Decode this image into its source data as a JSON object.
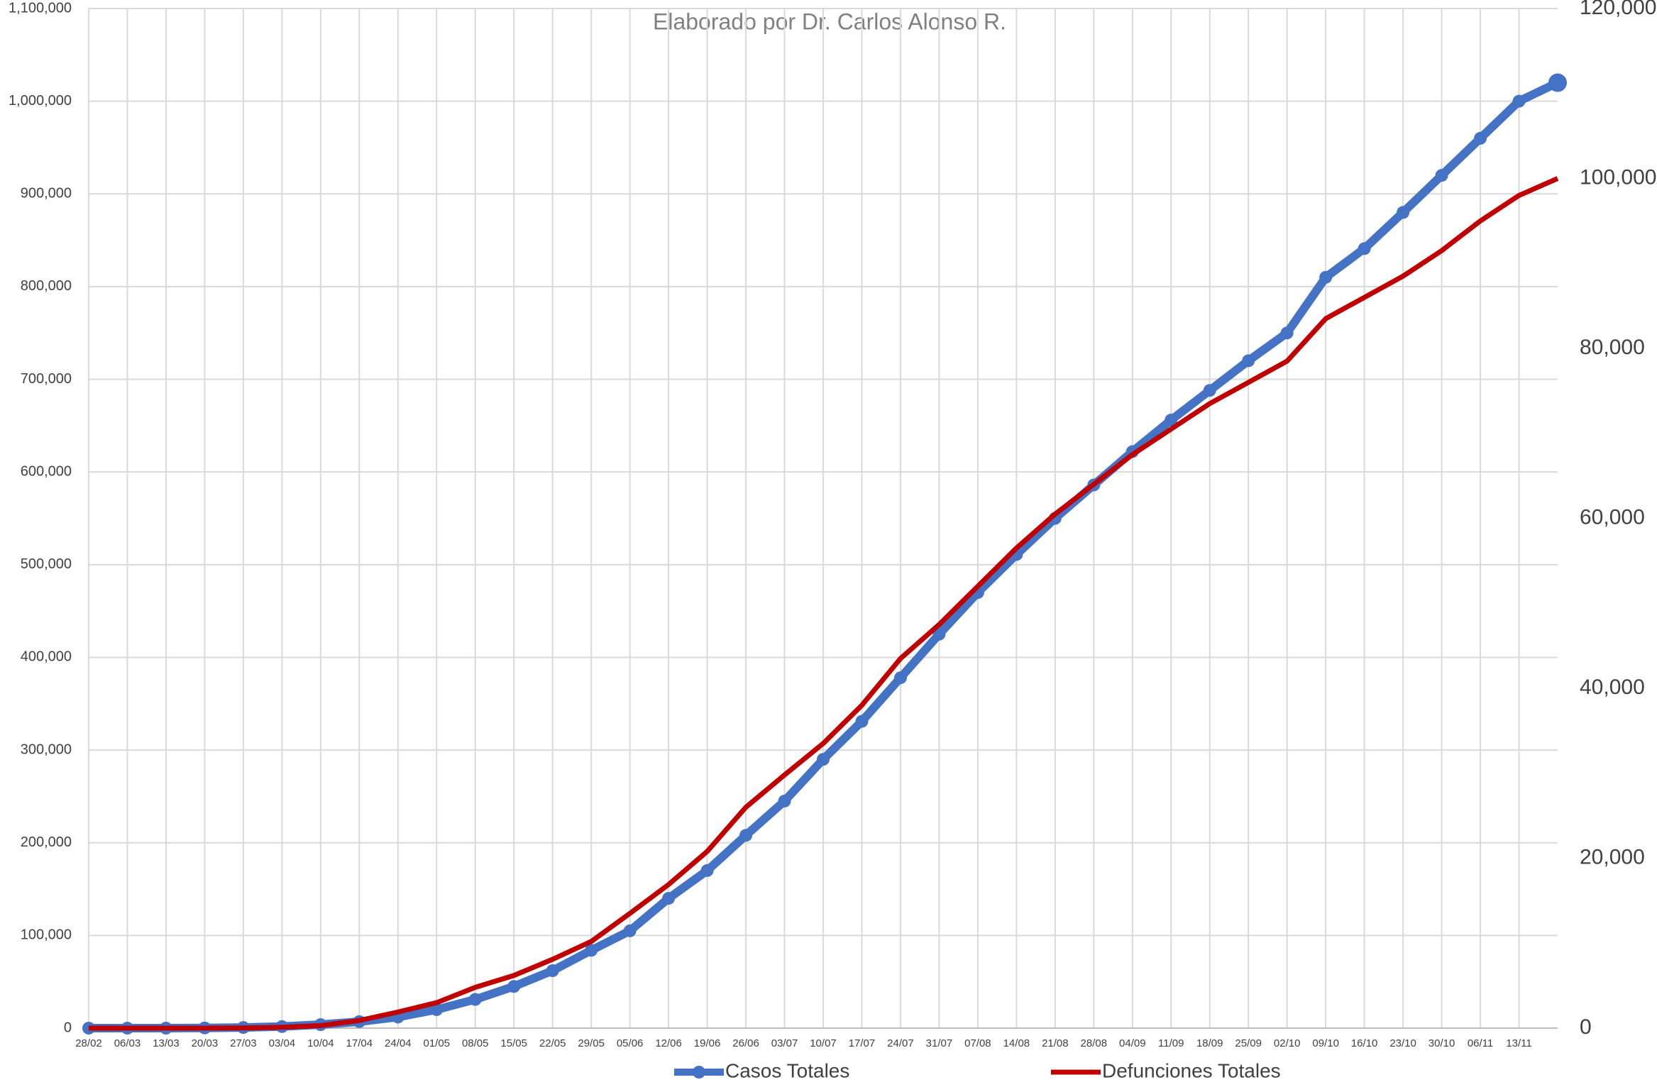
{
  "chart_data": {
    "type": "line",
    "subtitle": "Elaborado por Dr. Carlos Alonso R.",
    "categories": [
      "28/02",
      "06/03",
      "13/03",
      "20/03",
      "27/03",
      "03/04",
      "10/04",
      "17/04",
      "24/04",
      "01/05",
      "08/05",
      "15/05",
      "22/05",
      "29/05",
      "05/06",
      "12/06",
      "19/06",
      "26/06",
      "03/07",
      "10/07",
      "17/07",
      "24/07",
      "31/07",
      "07/08",
      "14/08",
      "21/08",
      "28/08",
      "04/09",
      "11/09",
      "18/09",
      "25/09",
      "02/10",
      "09/10",
      "16/10",
      "23/10",
      "30/10",
      "06/11",
      "13/11",
      null
    ],
    "series": [
      {
        "name": "Casos Totales",
        "color": "#4472c4",
        "axis": "y",
        "values": [
          0,
          0,
          0,
          200,
          700,
          1700,
          3800,
          7000,
          12000,
          20000,
          31000,
          45000,
          62000,
          84000,
          105000,
          140000,
          170000,
          208000,
          245000,
          290000,
          331000,
          378000,
          425000,
          470000,
          511000,
          550000,
          586000,
          622000,
          656000,
          688000,
          720000,
          750000,
          810000,
          841000,
          880000,
          920000,
          960000,
          1000000,
          1020000
        ]
      },
      {
        "name": "Defunciones Totales",
        "color": "#c00000",
        "axis": "y2",
        "values": [
          0,
          0,
          0,
          0,
          20,
          100,
          300,
          900,
          1900,
          3000,
          4800,
          6200,
          8100,
          10200,
          13500,
          16900,
          20800,
          26000,
          29800,
          33500,
          38000,
          43500,
          47500,
          52000,
          56500,
          60500,
          64000,
          67500,
          70500,
          73500,
          76000,
          78500,
          83500,
          86000,
          88500,
          91500,
          95000,
          98000,
          100000
        ]
      }
    ],
    "ylim": [
      0,
      1100000
    ],
    "yticks": [
      0,
      {
        "value": 100000,
        "label": "100,000"
      },
      {
        "value": 200000,
        "label": "200,000"
      },
      {
        "value": 300000,
        "label": "300,000"
      },
      {
        "value": 400000,
        "label": "400,000"
      },
      {
        "value": 500000,
        "label": "500,000"
      },
      {
        "value": 600000,
        "label": "600,000"
      },
      {
        "value": 700000,
        "label": "700,000"
      },
      {
        "value": 800000,
        "label": "800,000"
      },
      {
        "value": 900000,
        "label": "900,000"
      },
      {
        "value": 1000000,
        "label": "1,000,000"
      },
      {
        "value": 1100000,
        "label": "1,100,000"
      }
    ],
    "y2lim": [
      0,
      120000
    ],
    "y2ticks": [
      0,
      {
        "value": 20000,
        "label": "20,000"
      },
      {
        "value": 40000,
        "label": "40,000"
      },
      {
        "value": 60000,
        "label": "60,000"
      },
      {
        "value": 80000,
        "label": "80,000"
      },
      {
        "value": 100000,
        "label": "100,000"
      },
      {
        "value": 120000,
        "label": "120,000"
      }
    ],
    "grid": true,
    "legend": "bottom"
  }
}
